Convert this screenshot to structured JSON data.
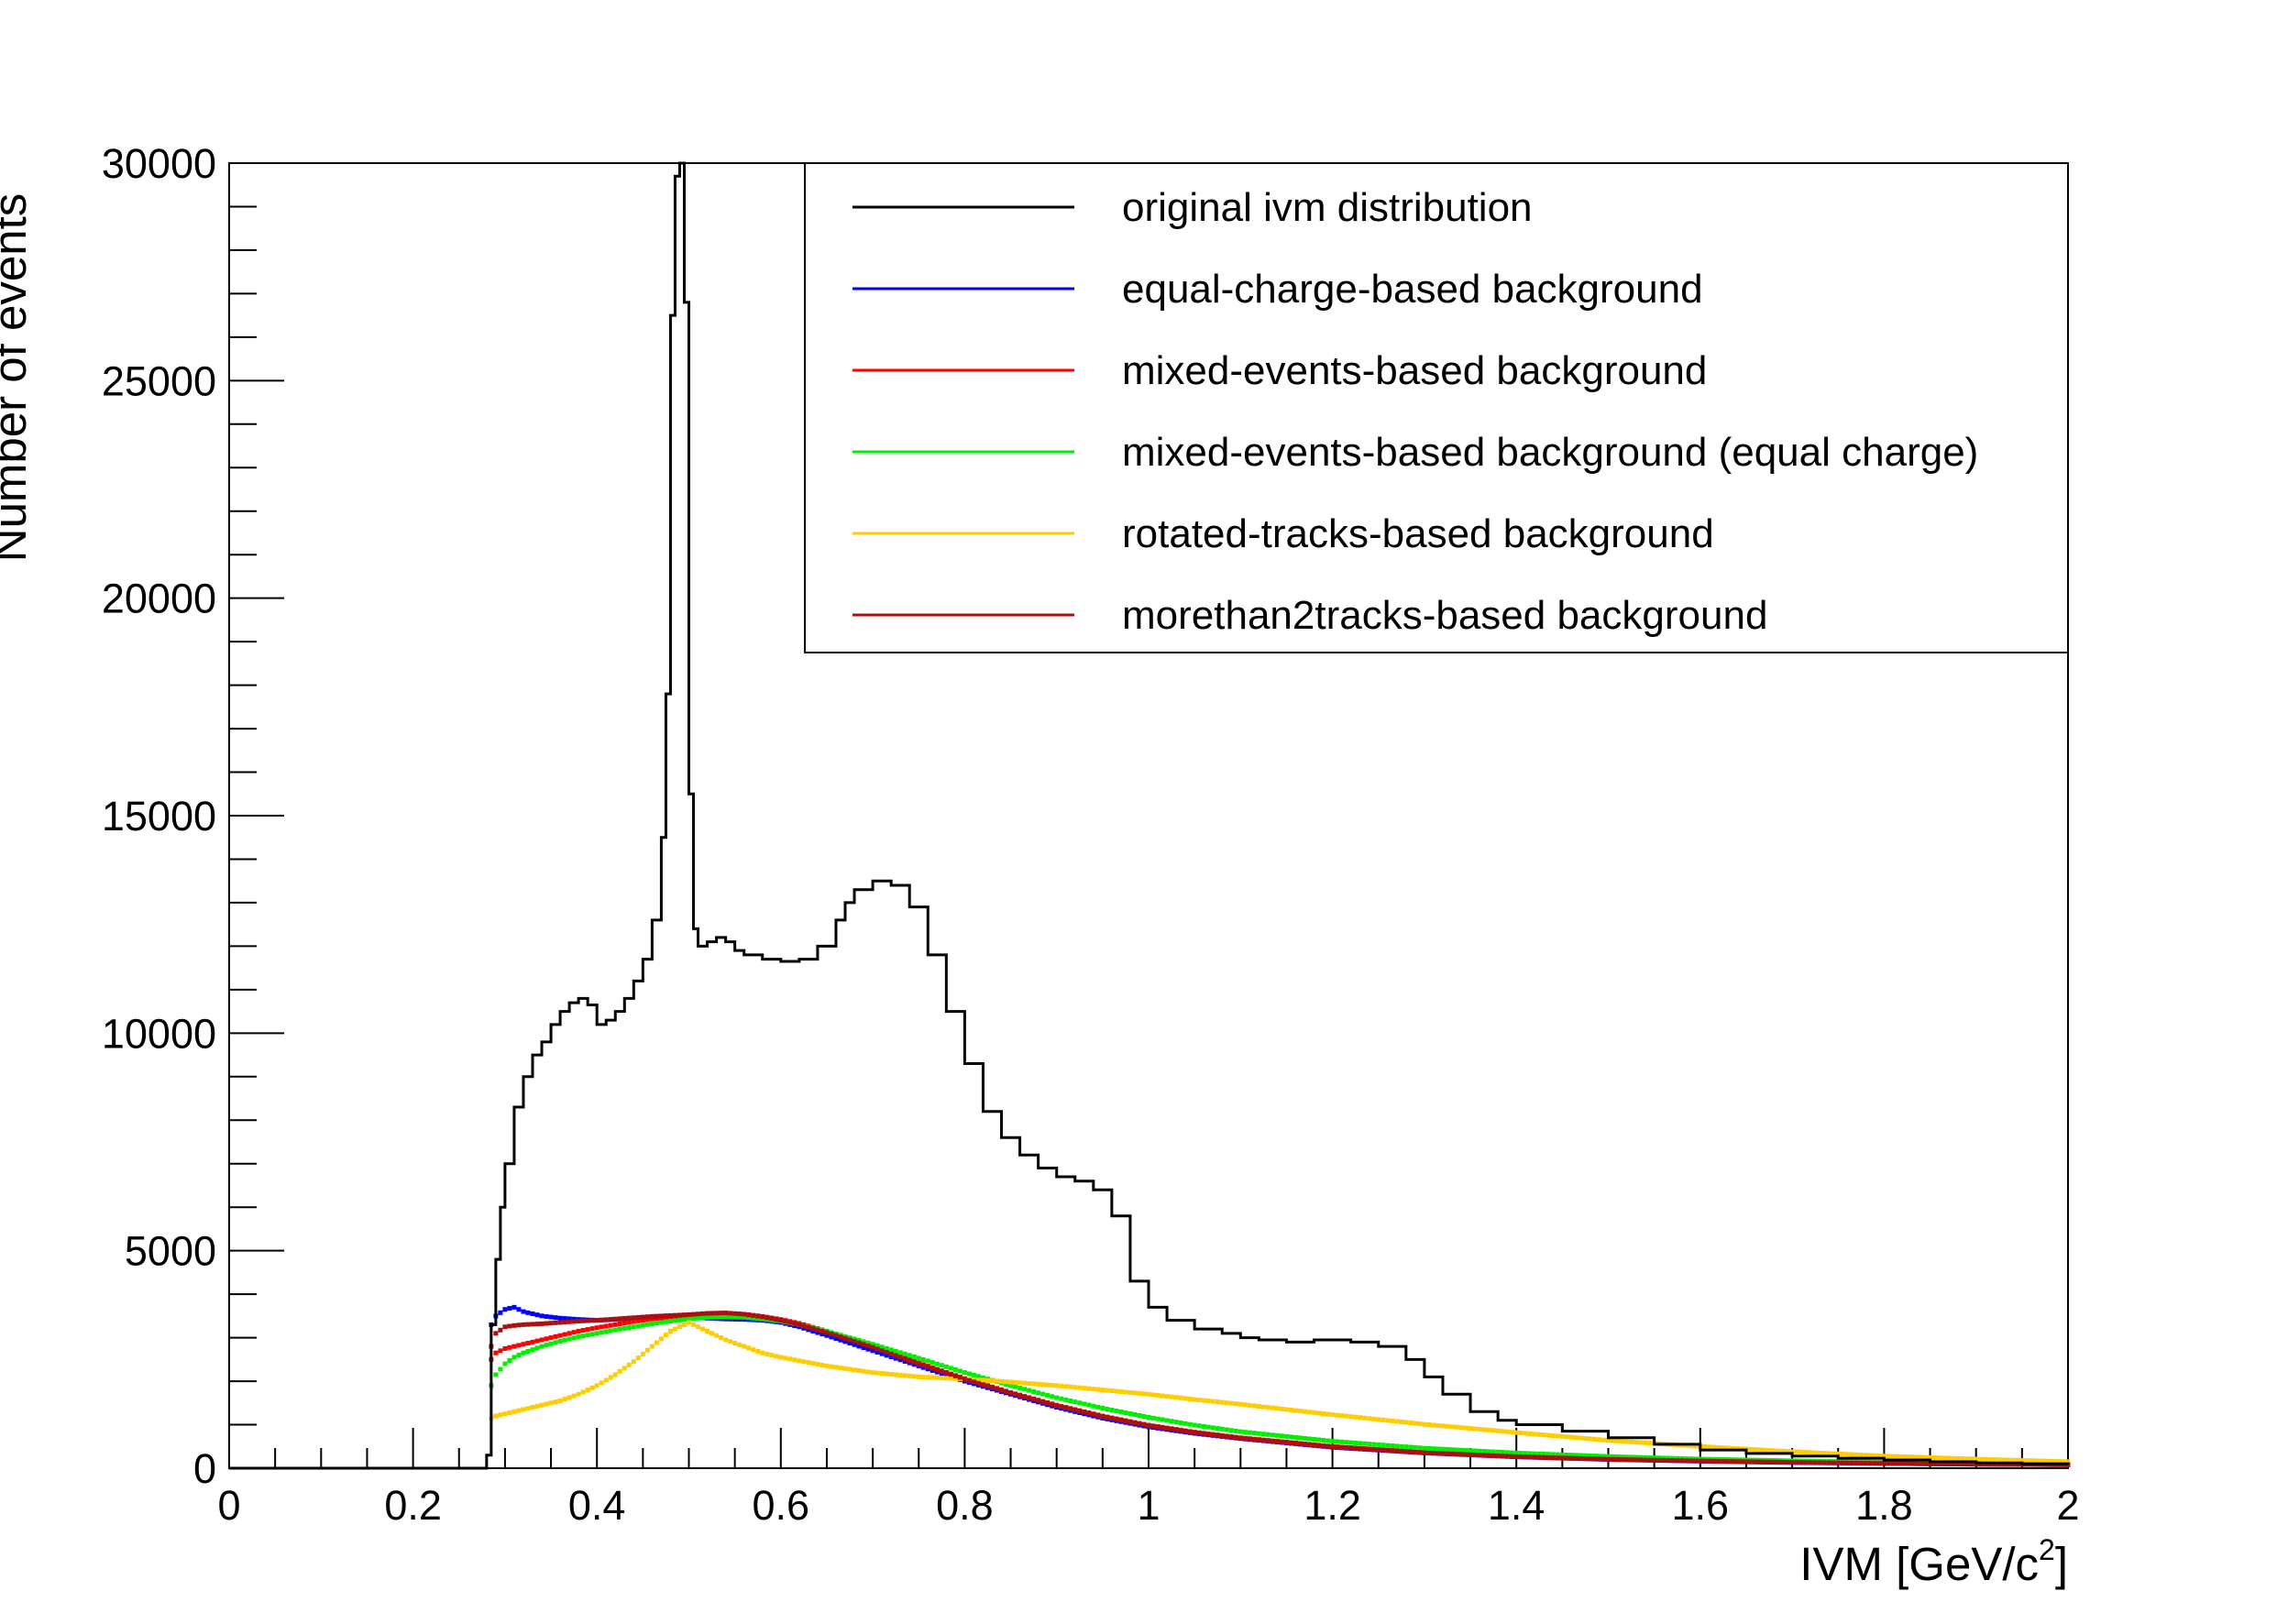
{
  "chart_data": {
    "type": "line",
    "title": "",
    "xlabel": "IVM [GeV/c",
    "xlabel_sup": "2",
    "xlabel_close": "]",
    "ylabel": "Number of events",
    "xlim": [
      0,
      2
    ],
    "ylim": [
      0,
      30000
    ],
    "x_ticks": [
      "0",
      "0.2",
      "0.4",
      "0.6",
      "0.8",
      "1",
      "1.2",
      "1.4",
      "1.6",
      "1.8",
      "2"
    ],
    "y_ticks": [
      "0",
      "5000",
      "10000",
      "15000",
      "20000",
      "25000",
      "30000"
    ],
    "grid": false,
    "legend_position": "top-right",
    "series": [
      {
        "name": "original ivm distribution",
        "color": "#000000",
        "style": "histogram",
        "x": [
          0,
          0.27,
          0.28,
          0.285,
          0.29,
          0.295,
          0.3,
          0.31,
          0.32,
          0.33,
          0.34,
          0.35,
          0.36,
          0.37,
          0.38,
          0.39,
          0.4,
          0.41,
          0.42,
          0.43,
          0.44,
          0.45,
          0.46,
          0.47,
          0.475,
          0.48,
          0.485,
          0.49,
          0.495,
          0.5,
          0.505,
          0.51,
          0.52,
          0.53,
          0.54,
          0.55,
          0.56,
          0.58,
          0.6,
          0.62,
          0.64,
          0.66,
          0.67,
          0.68,
          0.7,
          0.72,
          0.74,
          0.76,
          0.78,
          0.8,
          0.82,
          0.84,
          0.86,
          0.88,
          0.9,
          0.92,
          0.94,
          0.96,
          0.98,
          1.0,
          1.02,
          1.05,
          1.08,
          1.1,
          1.12,
          1.15,
          1.18,
          1.2,
          1.22,
          1.25,
          1.28,
          1.3,
          1.32,
          1.35,
          1.38,
          1.4,
          1.45,
          1.5,
          1.55,
          1.6,
          1.65,
          1.7,
          1.75,
          1.8,
          1.85,
          1.9,
          1.95,
          2.0
        ],
        "values": [
          0,
          0,
          300,
          3300,
          4800,
          6000,
          7000,
          8300,
          9000,
          9500,
          9800,
          10200,
          10500,
          10700,
          10800,
          10650,
          10200,
          10300,
          10500,
          10800,
          11200,
          11700,
          12600,
          14500,
          17800,
          26500,
          29700,
          30000,
          26800,
          15500,
          12400,
          12000,
          12100,
          12200,
          12100,
          11900,
          11800,
          11700,
          11650,
          11700,
          12000,
          12600,
          13000,
          13300,
          13500,
          13400,
          12900,
          11800,
          10500,
          9300,
          8200,
          7600,
          7200,
          6900,
          6700,
          6600,
          6400,
          5800,
          4300,
          3700,
          3400,
          3200,
          3100,
          3000,
          2950,
          2900,
          2950,
          2950,
          2900,
          2800,
          2500,
          2100,
          1700,
          1300,
          1100,
          1000,
          850,
          700,
          550,
          420,
          340,
          280,
          230,
          190,
          150,
          120,
          100,
          80
        ]
      },
      {
        "name": "equal-charge-based background",
        "color": "#0000ff",
        "style": "points",
        "x": [
          0.285,
          0.29,
          0.3,
          0.31,
          0.32,
          0.34,
          0.36,
          0.38,
          0.4,
          0.42,
          0.44,
          0.46,
          0.48,
          0.5,
          0.52,
          0.54,
          0.56,
          0.58,
          0.6,
          0.62,
          0.65,
          0.7,
          0.75,
          0.8,
          0.85,
          0.9,
          0.95,
          1.0,
          1.05,
          1.1,
          1.2,
          1.3,
          1.4,
          1.5,
          1.6,
          1.7,
          1.8,
          1.9,
          2.0
        ],
        "values": [
          3300,
          3500,
          3650,
          3700,
          3600,
          3500,
          3450,
          3420,
          3400,
          3420,
          3450,
          3470,
          3480,
          3470,
          3450,
          3430,
          3420,
          3400,
          3350,
          3250,
          3050,
          2700,
          2350,
          2000,
          1700,
          1400,
          1150,
          950,
          800,
          680,
          480,
          350,
          260,
          200,
          160,
          130,
          110,
          90,
          80
        ]
      },
      {
        "name": "mixed-events-based background",
        "color": "#ff0000",
        "style": "points",
        "x": [
          0.285,
          0.29,
          0.3,
          0.32,
          0.34,
          0.36,
          0.38,
          0.4,
          0.42,
          0.44,
          0.46,
          0.48,
          0.5,
          0.52,
          0.54,
          0.56,
          0.58,
          0.6,
          0.62,
          0.65,
          0.7,
          0.75,
          0.8,
          0.85,
          0.9,
          0.95,
          1.0,
          1.05,
          1.1,
          1.2,
          1.3,
          1.4,
          1.5,
          1.6,
          1.7,
          1.8,
          1.9,
          2.0
        ],
        "values": [
          2500,
          2650,
          2750,
          2850,
          2950,
          3050,
          3150,
          3230,
          3300,
          3370,
          3430,
          3480,
          3520,
          3550,
          3560,
          3540,
          3490,
          3420,
          3330,
          3150,
          2800,
          2420,
          2060,
          1740,
          1450,
          1200,
          990,
          830,
          700,
          500,
          360,
          270,
          210,
          170,
          140,
          115,
          95,
          80
        ]
      },
      {
        "name": "mixed-events-based background (equal charge)",
        "color": "#00ee00",
        "style": "points",
        "x": [
          0.285,
          0.29,
          0.3,
          0.31,
          0.32,
          0.34,
          0.36,
          0.38,
          0.4,
          0.42,
          0.44,
          0.46,
          0.48,
          0.5,
          0.52,
          0.54,
          0.56,
          0.58,
          0.6,
          0.62,
          0.65,
          0.7,
          0.75,
          0.8,
          0.85,
          0.9,
          0.95,
          1.0,
          1.05,
          1.1,
          1.2,
          1.3,
          1.4,
          1.5,
          1.6,
          1.7,
          1.8,
          1.9,
          2.0
        ],
        "values": [
          1900,
          2150,
          2400,
          2550,
          2650,
          2800,
          2920,
          3020,
          3100,
          3180,
          3250,
          3320,
          3380,
          3430,
          3470,
          3480,
          3470,
          3430,
          3380,
          3300,
          3150,
          2850,
          2530,
          2200,
          1900,
          1620,
          1380,
          1170,
          990,
          840,
          620,
          460,
          350,
          270,
          210,
          170,
          140,
          115,
          95
        ]
      },
      {
        "name": "rotated-tracks-based background",
        "color": "#ffcc00",
        "style": "points",
        "x": [
          0.285,
          0.29,
          0.3,
          0.32,
          0.34,
          0.36,
          0.38,
          0.4,
          0.42,
          0.44,
          0.46,
          0.48,
          0.5,
          0.52,
          0.54,
          0.56,
          0.58,
          0.6,
          0.65,
          0.7,
          0.75,
          0.8,
          0.85,
          0.9,
          0.95,
          1.0,
          1.05,
          1.1,
          1.2,
          1.3,
          1.4,
          1.5,
          1.6,
          1.7,
          1.8,
          1.9,
          2.0
        ],
        "values": [
          1150,
          1200,
          1250,
          1350,
          1450,
          1550,
          1700,
          1900,
          2150,
          2450,
          2800,
          3150,
          3350,
          3150,
          2950,
          2800,
          2650,
          2550,
          2350,
          2200,
          2100,
          2050,
          1980,
          1900,
          1800,
          1700,
          1580,
          1470,
          1230,
          1010,
          820,
          640,
          500,
          380,
          280,
          210,
          150
        ]
      },
      {
        "name": "morethan2tracks-based background",
        "color": "#aa1010",
        "style": "points",
        "x": [
          0.285,
          0.29,
          0.3,
          0.31,
          0.32,
          0.34,
          0.36,
          0.38,
          0.4,
          0.42,
          0.44,
          0.46,
          0.48,
          0.5,
          0.52,
          0.54,
          0.56,
          0.58,
          0.6,
          0.62,
          0.65,
          0.7,
          0.75,
          0.8,
          0.85,
          0.9,
          0.95,
          1.0,
          1.05,
          1.1,
          1.2,
          1.3,
          1.4,
          1.5,
          1.6,
          1.7,
          1.8,
          1.9,
          2.0
        ],
        "values": [
          2800,
          3100,
          3250,
          3280,
          3300,
          3320,
          3350,
          3380,
          3400,
          3430,
          3460,
          3490,
          3510,
          3530,
          3560,
          3570,
          3540,
          3480,
          3400,
          3300,
          3120,
          2780,
          2400,
          2050,
          1730,
          1440,
          1190,
          980,
          820,
          690,
          490,
          355,
          265,
          205,
          165,
          135,
          110,
          92,
          78
        ]
      }
    ]
  }
}
